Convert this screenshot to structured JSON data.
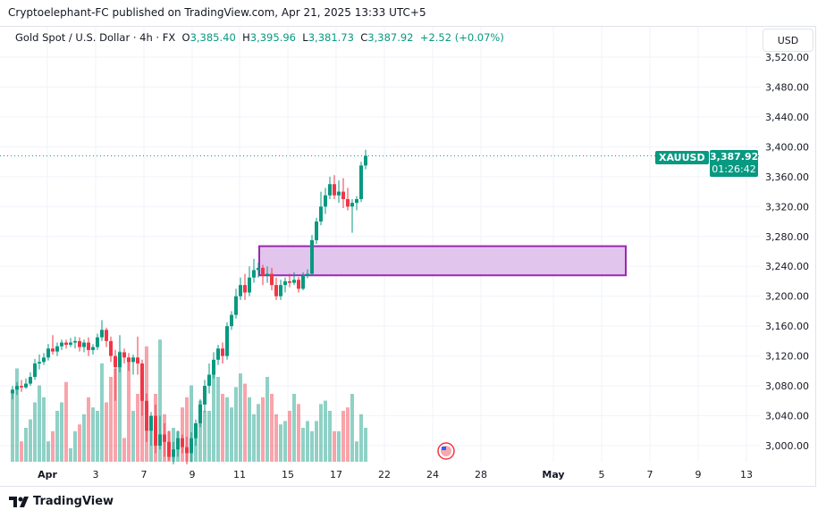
{
  "header": {
    "published": "Cryptoelephant-FC published on TradingView.com, Apr 21, 2025 13:33 UTC+5"
  },
  "legend": {
    "symbol": "Gold Spot / U.S. Dollar · 4h · FX",
    "o_label": "O",
    "o": "3,385.40",
    "h_label": "H",
    "h": "3,395.96",
    "l_label": "L",
    "l": "3,381.73",
    "c_label": "C",
    "c": "3,387.92",
    "change": "+2.52 (+0.07%)"
  },
  "currency_button": "USD",
  "price_badge": {
    "ticker": "XAUUSD",
    "price": "3,387.92",
    "countdown": "01:26:42"
  },
  "footer": {
    "brand": "TradingView"
  },
  "colors": {
    "up": "#089981",
    "down": "#f23645",
    "zone_fill": "#e1c5ec",
    "zone_border": "#9c27b0"
  },
  "chart_data": {
    "type": "candlestick",
    "y_ticks": [
      "3,000.00",
      "3,040.00",
      "3,080.00",
      "3,120.00",
      "3,160.00",
      "3,200.00",
      "3,240.00",
      "3,280.00",
      "3,320.00",
      "3,360.00",
      "3,400.00",
      "3,440.00",
      "3,480.00",
      "3,520.00"
    ],
    "ylim": [
      2985,
      3530
    ],
    "x_ticks": [
      "Apr",
      "3",
      "7",
      "9",
      "11",
      "15",
      "17",
      "22",
      "24",
      "28",
      "May",
      "5",
      "7",
      "9",
      "13"
    ],
    "last_price": 3387.92,
    "zone": {
      "top": 3267,
      "bottom": 3228,
      "from_candle": 55
    },
    "candles_ohlc": [
      [
        3070,
        3080,
        3062,
        3075
      ],
      [
        3075,
        3085,
        3068,
        3080
      ],
      [
        3080,
        3088,
        3072,
        3078
      ],
      [
        3078,
        3090,
        3076,
        3083
      ],
      [
        3083,
        3098,
        3080,
        3092
      ],
      [
        3092,
        3116,
        3088,
        3110
      ],
      [
        3110,
        3122,
        3102,
        3112
      ],
      [
        3112,
        3124,
        3108,
        3118
      ],
      [
        3118,
        3136,
        3114,
        3130
      ],
      [
        3130,
        3148,
        3122,
        3126
      ],
      [
        3126,
        3138,
        3120,
        3133
      ],
      [
        3133,
        3142,
        3128,
        3138
      ],
      [
        3138,
        3142,
        3130,
        3135
      ],
      [
        3135,
        3144,
        3132,
        3138
      ],
      [
        3138,
        3146,
        3130,
        3140
      ],
      [
        3140,
        3145,
        3126,
        3132
      ],
      [
        3132,
        3142,
        3125,
        3138
      ],
      [
        3138,
        3145,
        3120,
        3128
      ],
      [
        3128,
        3136,
        3122,
        3132
      ],
      [
        3132,
        3150,
        3128,
        3145
      ],
      [
        3145,
        3168,
        3140,
        3155
      ],
      [
        3155,
        3158,
        3132,
        3140
      ],
      [
        3140,
        3146,
        3112,
        3120
      ],
      [
        3120,
        3128,
        3060,
        3105
      ],
      [
        3105,
        3148,
        3098,
        3125
      ],
      [
        3125,
        3130,
        3110,
        3118
      ],
      [
        3118,
        3124,
        3100,
        3112
      ],
      [
        3112,
        3122,
        3095,
        3118
      ],
      [
        3118,
        3146,
        3095,
        3110
      ],
      [
        3110,
        3115,
        3040,
        3060
      ],
      [
        3060,
        3070,
        3005,
        3020
      ],
      [
        3020,
        3045,
        3000,
        3040
      ],
      [
        3040,
        3055,
        2990,
        3000
      ],
      [
        3000,
        3040,
        2995,
        3015
      ],
      [
        3015,
        3030,
        2985,
        3005
      ],
      [
        3005,
        3020,
        2980,
        2985
      ],
      [
        2985,
        3005,
        2975,
        2995
      ],
      [
        2995,
        3020,
        2985,
        3010
      ],
      [
        3010,
        3015,
        2990,
        2998
      ],
      [
        2998,
        3012,
        2975,
        2990
      ],
      [
        2990,
        3018,
        2978,
        3010
      ],
      [
        3010,
        3035,
        3000,
        3030
      ],
      [
        3030,
        3062,
        3025,
        3055
      ],
      [
        3055,
        3088,
        3045,
        3080
      ],
      [
        3080,
        3110,
        3070,
        3095
      ],
      [
        3095,
        3125,
        3090,
        3115
      ],
      [
        3115,
        3135,
        3108,
        3130
      ],
      [
        3130,
        3138,
        3110,
        3120
      ],
      [
        3120,
        3165,
        3115,
        3160
      ],
      [
        3160,
        3180,
        3155,
        3175
      ],
      [
        3175,
        3210,
        3170,
        3200
      ],
      [
        3200,
        3225,
        3195,
        3215
      ],
      [
        3215,
        3230,
        3195,
        3205
      ],
      [
        3205,
        3240,
        3200,
        3225
      ],
      [
        3225,
        3250,
        3218,
        3235
      ],
      [
        3235,
        3245,
        3225,
        3238
      ],
      [
        3238,
        3242,
        3215,
        3228
      ],
      [
        3228,
        3240,
        3218,
        3230
      ],
      [
        3230,
        3238,
        3208,
        3215
      ],
      [
        3215,
        3225,
        3195,
        3200
      ],
      [
        3200,
        3222,
        3195,
        3215
      ],
      [
        3215,
        3225,
        3205,
        3220
      ],
      [
        3220,
        3230,
        3212,
        3218
      ],
      [
        3218,
        3232,
        3215,
        3222
      ],
      [
        3222,
        3226,
        3205,
        3210
      ],
      [
        3210,
        3232,
        3208,
        3228
      ],
      [
        3228,
        3236,
        3224,
        3230
      ],
      [
        3230,
        3282,
        3228,
        3275
      ],
      [
        3275,
        3305,
        3270,
        3300
      ],
      [
        3300,
        3340,
        3295,
        3320
      ],
      [
        3320,
        3345,
        3310,
        3335
      ],
      [
        3335,
        3360,
        3330,
        3350
      ],
      [
        3350,
        3362,
        3330,
        3335
      ],
      [
        3335,
        3355,
        3325,
        3340
      ],
      [
        3340,
        3358,
        3318,
        3330
      ],
      [
        3330,
        3345,
        3315,
        3320
      ],
      [
        3320,
        3330,
        3285,
        3325
      ],
      [
        3325,
        3334,
        3315,
        3330
      ],
      [
        3330,
        3380,
        3326,
        3375
      ],
      [
        3375,
        3396,
        3370,
        3388
      ]
    ],
    "volume": [
      42,
      55,
      12,
      20,
      25,
      35,
      45,
      38,
      12,
      18,
      30,
      35,
      47,
      8,
      18,
      22,
      28,
      38,
      32,
      30,
      58,
      35,
      50,
      55,
      65,
      14,
      60,
      30,
      40,
      50,
      68,
      20,
      40,
      72,
      28,
      18,
      20,
      18,
      32,
      38,
      45,
      22,
      36,
      30,
      30,
      58,
      50,
      40,
      38,
      32,
      44,
      52,
      46,
      38,
      28,
      34,
      38,
      50,
      40,
      28,
      22,
      24,
      30,
      40,
      34,
      20,
      24,
      18,
      24,
      34,
      36,
      30,
      18,
      18,
      30,
      32,
      40,
      12,
      28,
      20
    ]
  }
}
